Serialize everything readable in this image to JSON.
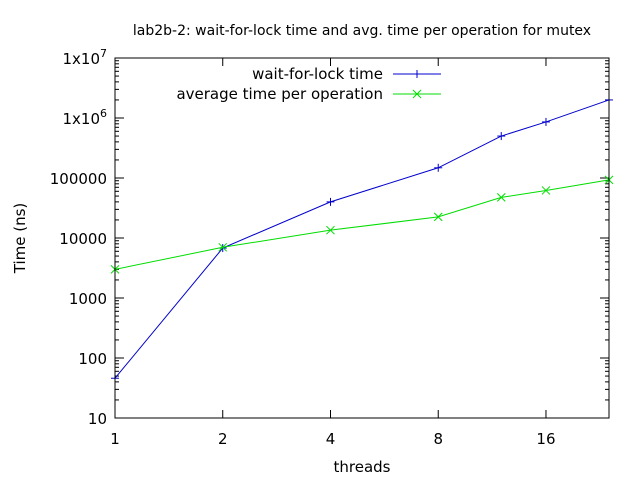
{
  "chart_data": {
    "type": "line",
    "title": "lab2b-2: wait-for-lock time and avg. time per operation for mutex",
    "xlabel": "threads",
    "ylabel": "Time (ns)",
    "x_scale": "log2",
    "y_scale": "log10",
    "xlim": [
      1,
      24
    ],
    "ylim": [
      10,
      10000000
    ],
    "x_ticks": [
      {
        "value": 1,
        "label": "1"
      },
      {
        "value": 2,
        "label": "2"
      },
      {
        "value": 4,
        "label": "4"
      },
      {
        "value": 8,
        "label": "8"
      },
      {
        "value": 16,
        "label": "16"
      }
    ],
    "y_ticks": [
      {
        "value": 10,
        "label": "10"
      },
      {
        "value": 100,
        "label": "100"
      },
      {
        "value": 1000,
        "label": "1000"
      },
      {
        "value": 10000,
        "label": "10000"
      },
      {
        "value": 100000,
        "label": "100000"
      },
      {
        "value": 1000000,
        "base": "1x10",
        "exp": "6"
      },
      {
        "value": 10000000,
        "base": "1x10",
        "exp": "7"
      }
    ],
    "legend_position": "top-left",
    "grid": false,
    "series": [
      {
        "name": "wait-for-lock time",
        "color": "#0000cc",
        "marker": "plus",
        "x": [
          1,
          2,
          4,
          8,
          12,
          16,
          24
        ],
        "y": [
          46,
          6800,
          40000,
          148000,
          500000,
          860000,
          2000000
        ]
      },
      {
        "name": "average time per operation",
        "color": "#00dd00",
        "marker": "cross",
        "x": [
          1,
          2,
          4,
          8,
          12,
          16,
          24
        ],
        "y": [
          3000,
          7000,
          13500,
          22500,
          47500,
          62000,
          93000
        ]
      }
    ]
  }
}
